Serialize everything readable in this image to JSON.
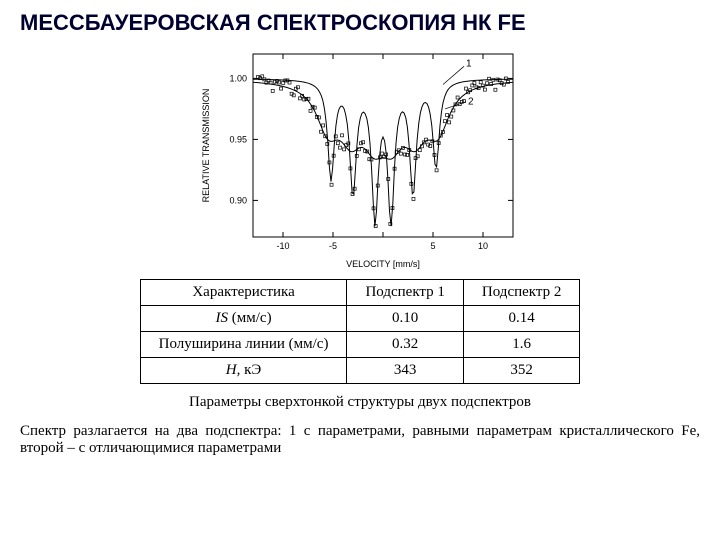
{
  "title": "МЕССБАУЕРОВСКАЯ СПЕКТРОСКОПИЯ НК FE",
  "chart": {
    "type": "scatter-line",
    "ylabel": "RELATIVE TRANSMISSION",
    "xlabel": "VELOCITY [mm/s]",
    "xlim": [
      -13,
      13
    ],
    "ylim": [
      0.87,
      1.02
    ],
    "xticks": [
      -10,
      -5,
      0,
      5,
      10
    ],
    "xtick_labels": [
      "-10",
      "-5",
      " ",
      "5",
      "10"
    ],
    "yticks": [
      0.9,
      0.95,
      1.0
    ],
    "ytick_labels": [
      "0.90",
      "0.95",
      "1.00"
    ],
    "label_fontsize": 9,
    "tick_fontsize": 9,
    "line_color": "#000000",
    "marker_color": "#000000",
    "background": "#ffffff",
    "curve1_label": "1",
    "curve2_label": "2",
    "dips1": [
      {
        "x": -5.2,
        "depth": 0.92,
        "w": 0.4
      },
      {
        "x": -3.0,
        "depth": 0.91,
        "w": 0.4
      },
      {
        "x": -0.8,
        "depth": 0.89,
        "w": 0.4
      },
      {
        "x": 0.8,
        "depth": 0.89,
        "w": 0.4
      },
      {
        "x": 3.0,
        "depth": 0.91,
        "w": 0.4
      },
      {
        "x": 5.3,
        "depth": 0.93,
        "w": 0.4
      }
    ],
    "dips2": [
      {
        "x": -5.5,
        "depth": 0.965,
        "w": 1.4
      },
      {
        "x": -3.2,
        "depth": 0.965,
        "w": 1.4
      },
      {
        "x": -0.9,
        "depth": 0.965,
        "w": 1.4
      },
      {
        "x": 0.9,
        "depth": 0.965,
        "w": 1.4
      },
      {
        "x": 3.2,
        "depth": 0.965,
        "w": 1.4
      },
      {
        "x": 5.5,
        "depth": 0.965,
        "w": 1.4
      }
    ]
  },
  "table": {
    "headers": [
      "Характеристика",
      "Подспектр 1",
      "Подспектр 2"
    ],
    "rows": [
      [
        "IS (мм/с)",
        "0.10",
        "0.14"
      ],
      [
        "Полуширина линии (мм/с)",
        "0.32",
        "1.6"
      ],
      [
        "H, кЭ",
        "343",
        "352"
      ]
    ],
    "italic_cells": [
      [
        0,
        0
      ],
      [
        2,
        0
      ]
    ]
  },
  "caption": "Параметры сверхтонкой структуры двух подспектров",
  "body": "Спектр разлагается на два подспектра: 1 с параметрами, равными параметрам кристаллического Fe, второй – с отличающимися параметрами"
}
